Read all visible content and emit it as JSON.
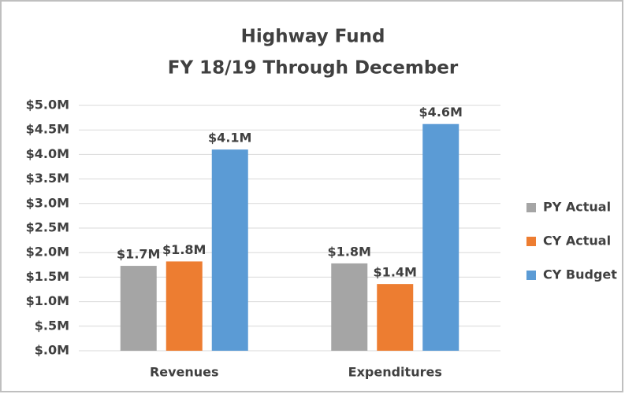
{
  "chart_data": {
    "type": "bar",
    "title": "Highway Fund",
    "subtitle": "FY 18/19 Through December",
    "categories": [
      "Revenues",
      "Expenditures"
    ],
    "series": [
      {
        "name": "PY Actual",
        "color": "#a5a5a5",
        "values": [
          1.73,
          1.78
        ],
        "value_labels": [
          "$1.7M",
          "$1.8M"
        ]
      },
      {
        "name": "CY Actual",
        "color": "#ed7d31",
        "values": [
          1.82,
          1.36
        ],
        "value_labels": [
          "$1.8M",
          "$1.4M"
        ]
      },
      {
        "name": "CY Budget",
        "color": "#5b9bd5",
        "values": [
          4.1,
          4.62
        ],
        "value_labels": [
          "$4.1M",
          "$4.6M"
        ]
      }
    ],
    "ylim": [
      0,
      5
    ],
    "yticks": [
      {
        "value": 0,
        "label": "$.0M"
      },
      {
        "value": 0.5,
        "label": "$.5M"
      },
      {
        "value": 1,
        "label": "$1.0M"
      },
      {
        "value": 1.5,
        "label": "$1.5M"
      },
      {
        "value": 2,
        "label": "$2.0M"
      },
      {
        "value": 2.5,
        "label": "$2.5M"
      },
      {
        "value": 3,
        "label": "$3.0M"
      },
      {
        "value": 3.5,
        "label": "$3.5M"
      },
      {
        "value": 4,
        "label": "$4.0M"
      },
      {
        "value": 4.5,
        "label": "$4.5M"
      },
      {
        "value": 5,
        "label": "$5.0M"
      }
    ],
    "grid": true,
    "legend": "right"
  }
}
